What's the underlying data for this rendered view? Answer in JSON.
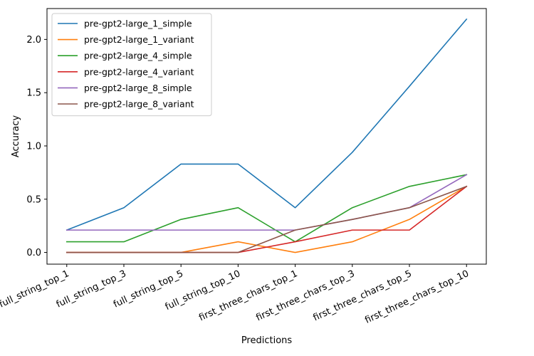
{
  "chart_data": {
    "type": "line",
    "title": "",
    "xlabel": "Predictions",
    "ylabel": "Accuracy",
    "categories": [
      "full_string_top_1",
      "full_string_top_3",
      "full_string_top_5",
      "full_string_top_10",
      "first_three_chars_top_1",
      "first_three_chars_top_3",
      "first_three_chars_top_5",
      "first_three_chars_top_10"
    ],
    "ylim": [
      -0.11,
      2.29
    ],
    "yticks": [
      0.0,
      0.5,
      1.0,
      1.5,
      2.0
    ],
    "ytick_labels": [
      "0.0",
      "0.5",
      "1.0",
      "1.5",
      "2.0"
    ],
    "grid": false,
    "legend_position": "upper-left",
    "series": [
      {
        "name": "pre-gpt2-large_1_simple",
        "color": "#1f77b4",
        "values": [
          0.21,
          0.42,
          0.83,
          0.83,
          0.42,
          0.94,
          1.56,
          2.19
        ]
      },
      {
        "name": "pre-gpt2-large_1_variant",
        "color": "#ff7f0e",
        "values": [
          0.0,
          0.0,
          0.0,
          0.1,
          0.0,
          0.1,
          0.31,
          0.62
        ]
      },
      {
        "name": "pre-gpt2-large_4_simple",
        "color": "#2ca02c",
        "values": [
          0.1,
          0.1,
          0.31,
          0.42,
          0.1,
          0.42,
          0.62,
          0.73
        ]
      },
      {
        "name": "pre-gpt2-large_4_variant",
        "color": "#d62728",
        "values": [
          0.0,
          0.0,
          0.0,
          0.0,
          0.1,
          0.21,
          0.21,
          0.62
        ]
      },
      {
        "name": "pre-gpt2-large_8_simple",
        "color": "#9467bd",
        "values": [
          0.21,
          0.21,
          0.21,
          0.21,
          0.21,
          0.31,
          0.42,
          0.73
        ]
      },
      {
        "name": "pre-gpt2-large_8_variant",
        "color": "#8c564b",
        "values": [
          0.0,
          0.0,
          0.0,
          0.0,
          0.21,
          0.31,
          0.42,
          0.62
        ]
      }
    ]
  }
}
